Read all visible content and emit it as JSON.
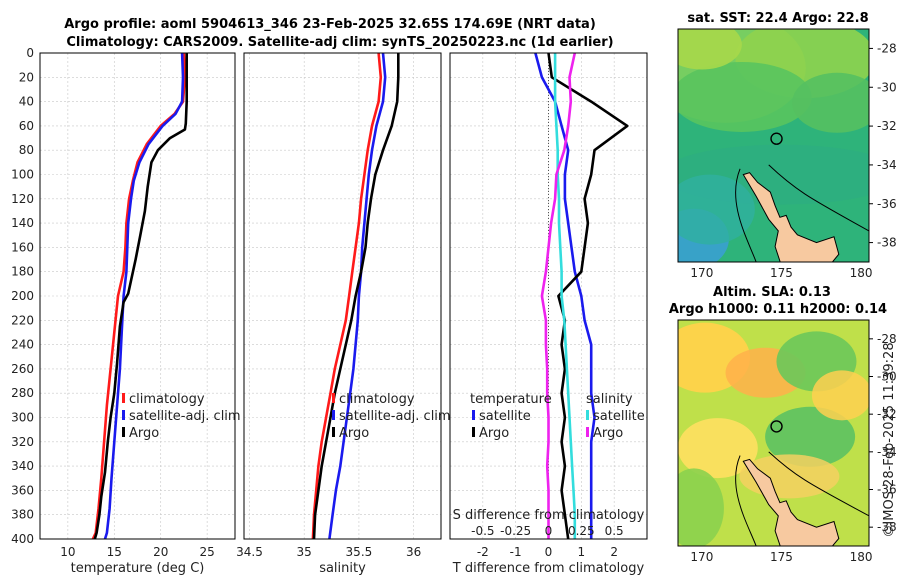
{
  "title_line1": "Argo profile: aoml 5904613_346 23-Feb-2025 32.65S 174.69E (NRT data)",
  "title_line2": "Climatology: CARS2009. Satellite-adj clim: synTS_20250223.nc (1d earlier)",
  "sst_title": "sat. SST: 22.4 Argo: 22.8",
  "sla_title1": "Altim. SLA: 0.13",
  "sla_title2": "Argo h1000: 0.11 h2000: 0.14",
  "credit": "©IMOS 28-Feb-2025 11:39:28",
  "colors": {
    "climatology": "#ff1a1a",
    "satellite": "#1a1aee",
    "argo": "#000000",
    "salinity": "#33dddd",
    "satS": "#ee22ee"
  },
  "chart_data": [
    {
      "type": "line",
      "id": "temperature",
      "xlabel": "temperature (deg C)",
      "ylabel": "",
      "xlim": [
        7,
        28
      ],
      "ylim": [
        400,
        0
      ],
      "xticks": [
        10,
        15,
        20,
        25
      ],
      "yticks": [
        0,
        20,
        40,
        60,
        80,
        100,
        120,
        140,
        160,
        180,
        200,
        220,
        240,
        260,
        280,
        300,
        320,
        340,
        360,
        380,
        400
      ],
      "legend": [
        "climatology",
        "satellite-adj. clim",
        "Argo"
      ],
      "legend_position": "bottom-right",
      "series": [
        {
          "name": "climatology",
          "color_key": "climatology",
          "x": [
            22.5,
            22.6,
            22.4,
            21.5,
            20.0,
            18.5,
            17.5,
            17.0,
            16.6,
            16.3,
            16.2,
            16.0,
            15.4,
            15.0,
            14.6,
            14.2,
            13.9,
            13.6,
            13.3,
            13.0,
            12.7
          ],
          "y": [
            0,
            20,
            40,
            50,
            60,
            75,
            90,
            105,
            120,
            140,
            160,
            180,
            200,
            230,
            260,
            290,
            320,
            350,
            375,
            395,
            400
          ]
        },
        {
          "name": "satellite-adj. clim",
          "color_key": "satellite",
          "x": [
            22.3,
            22.4,
            22.3,
            21.6,
            20.2,
            18.7,
            17.7,
            17.1,
            16.8,
            16.5,
            16.4,
            16.3,
            16.0,
            15.8,
            15.6,
            15.3,
            15.0,
            14.7,
            14.5,
            14.2,
            14.0
          ],
          "y": [
            0,
            20,
            40,
            50,
            60,
            75,
            90,
            105,
            120,
            140,
            160,
            180,
            200,
            230,
            260,
            290,
            320,
            350,
            375,
            395,
            400
          ]
        },
        {
          "name": "Argo",
          "color_key": "argo",
          "x": [
            22.8,
            22.8,
            22.8,
            22.7,
            22.6,
            21.0,
            19.7,
            19.0,
            18.6,
            18.3,
            17.8,
            17.3,
            16.5,
            16.0,
            15.6,
            15.3,
            15.0,
            14.6,
            14.3,
            14.0,
            13.6,
            13.4,
            13.1,
            12.9
          ],
          "y": [
            0,
            20,
            40,
            58,
            63,
            70,
            80,
            90,
            110,
            130,
            150,
            170,
            198,
            205,
            225,
            255,
            280,
            300,
            320,
            345,
            365,
            380,
            395,
            400
          ]
        }
      ]
    },
    {
      "type": "line",
      "id": "salinity",
      "xlabel": "salinity",
      "xlim": [
        34.45,
        36.25
      ],
      "ylim": [
        400,
        0
      ],
      "xticks": [
        34.5,
        35,
        35.5,
        36
      ],
      "xtick_labels": [
        "34.5",
        "35",
        "35.5",
        "36"
      ],
      "legend": [
        "climatology",
        "satellite-adj. clim",
        "Argo"
      ],
      "legend_position": "bottom-right",
      "series": [
        {
          "name": "climatology",
          "color_key": "climatology",
          "x": [
            35.68,
            35.7,
            35.68,
            35.62,
            35.58,
            35.55,
            35.52,
            35.5,
            35.47,
            35.44,
            35.41,
            35.38,
            35.33,
            35.28,
            35.24,
            35.2,
            35.16,
            35.13,
            35.11,
            35.09,
            35.08
          ],
          "y": [
            0,
            20,
            40,
            60,
            80,
            100,
            120,
            140,
            160,
            180,
            200,
            220,
            240,
            260,
            280,
            300,
            320,
            340,
            360,
            380,
            400
          ]
        },
        {
          "name": "satellite-adj. clim",
          "color_key": "satellite",
          "x": [
            35.72,
            35.74,
            35.72,
            35.66,
            35.62,
            35.59,
            35.57,
            35.55,
            35.53,
            35.52,
            35.5,
            35.49,
            35.47,
            35.45,
            35.42,
            35.39,
            35.36,
            35.33,
            35.29,
            35.26,
            35.23
          ],
          "y": [
            0,
            20,
            40,
            60,
            80,
            100,
            120,
            140,
            160,
            180,
            200,
            220,
            240,
            260,
            280,
            300,
            320,
            340,
            360,
            380,
            400
          ]
        },
        {
          "name": "Argo",
          "color_key": "argo",
          "x": [
            35.86,
            35.86,
            35.85,
            35.8,
            35.72,
            35.65,
            35.61,
            35.58,
            35.56,
            35.52,
            35.47,
            35.43,
            35.38,
            35.33,
            35.28,
            35.24,
            35.2,
            35.16,
            35.13,
            35.1,
            35.09
          ],
          "y": [
            0,
            20,
            40,
            60,
            80,
            100,
            120,
            140,
            160,
            180,
            200,
            220,
            240,
            260,
            280,
            300,
            320,
            340,
            360,
            380,
            400
          ]
        }
      ]
    },
    {
      "type": "line",
      "id": "difference",
      "xlabel": "T difference from climatology",
      "xlabel2": "S difference from climatology",
      "xlim": [
        -3,
        3
      ],
      "xlim_S": [
        -0.75,
        0.75
      ],
      "ylim": [
        400,
        0
      ],
      "xticks": [
        -2,
        -1,
        0,
        1,
        2
      ],
      "xticks_S": [
        "-0.5",
        "-0.25",
        "0",
        "0.25",
        "0.5"
      ],
      "legend_left_title": "temperature",
      "legend_right_title": "salinity",
      "legend_left": [
        "satellite",
        "Argo"
      ],
      "legend_right": [
        "satellite",
        "Argo"
      ],
      "series": [
        {
          "name": "temperature satellite",
          "color_key": "satellite",
          "x": [
            -0.4,
            -0.2,
            0.2,
            0.4,
            0.6,
            0.5,
            0.5,
            0.6,
            0.7,
            0.8,
            1.0,
            1.1,
            1.3,
            1.3,
            1.3,
            1.4,
            1.3,
            1.3,
            1.3,
            1.3,
            1.3
          ],
          "y": [
            0,
            20,
            40,
            60,
            80,
            100,
            120,
            140,
            160,
            180,
            200,
            220,
            240,
            260,
            280,
            300,
            320,
            340,
            360,
            380,
            400
          ]
        },
        {
          "name": "temperature Argo",
          "color_key": "argo",
          "x": [
            0.0,
            0.1,
            1.3,
            2.4,
            1.4,
            1.3,
            1.1,
            1.2,
            1.1,
            1.0,
            0.3,
            0.5,
            0.4,
            0.5,
            0.4,
            0.5,
            0.4,
            0.5,
            0.4,
            0.5,
            0.6
          ],
          "y": [
            0,
            20,
            40,
            60,
            80,
            100,
            120,
            140,
            160,
            180,
            200,
            220,
            240,
            260,
            280,
            300,
            320,
            340,
            360,
            380,
            400
          ]
        },
        {
          "name": "salinity satellite",
          "color_key": "salinity",
          "x": [
            0.05,
            0.05,
            0.05,
            0.06,
            0.07,
            0.07,
            0.08,
            0.08,
            0.09,
            0.1,
            0.1,
            0.12,
            0.13,
            0.14,
            0.15,
            0.16,
            0.17,
            0.18,
            0.19,
            0.2,
            0.2
          ],
          "y": [
            0,
            20,
            40,
            60,
            80,
            100,
            120,
            140,
            160,
            180,
            200,
            220,
            240,
            260,
            280,
            300,
            320,
            340,
            360,
            380,
            400
          ]
        },
        {
          "name": "salinity Argo",
          "color_key": "satS",
          "x": [
            0.2,
            0.16,
            0.17,
            0.15,
            0.12,
            0.06,
            0.05,
            0.02,
            0.0,
            -0.02,
            -0.05,
            -0.02,
            -0.02,
            -0.01,
            -0.01,
            0.0,
            0.0,
            -0.01,
            0.0,
            0.0,
            0.0
          ],
          "y": [
            0,
            20,
            40,
            60,
            80,
            100,
            120,
            140,
            160,
            180,
            200,
            220,
            240,
            260,
            280,
            300,
            320,
            340,
            360,
            380,
            400
          ]
        }
      ]
    },
    {
      "type": "heatmap",
      "id": "sst_map",
      "title": "sat. SST: 22.4 Argo: 22.8",
      "xticks": [
        170,
        175,
        180
      ],
      "yticks": [
        -28,
        -30,
        -32,
        -34,
        -36,
        -38
      ],
      "xlim": [
        168.5,
        180.5
      ],
      "ylim": [
        -39,
        -27
      ],
      "marker": {
        "lon": 174.69,
        "lat": -32.65
      }
    },
    {
      "type": "heatmap",
      "id": "sla_map",
      "title": "Altim. SLA: 0.13",
      "xticks": [
        170,
        175,
        180
      ],
      "yticks": [
        -28,
        -30,
        -32,
        -34,
        -36,
        -38
      ],
      "xlim": [
        168.5,
        180.5
      ],
      "ylim": [
        -39,
        -27
      ],
      "marker": {
        "lon": 174.69,
        "lat": -32.65
      }
    }
  ]
}
